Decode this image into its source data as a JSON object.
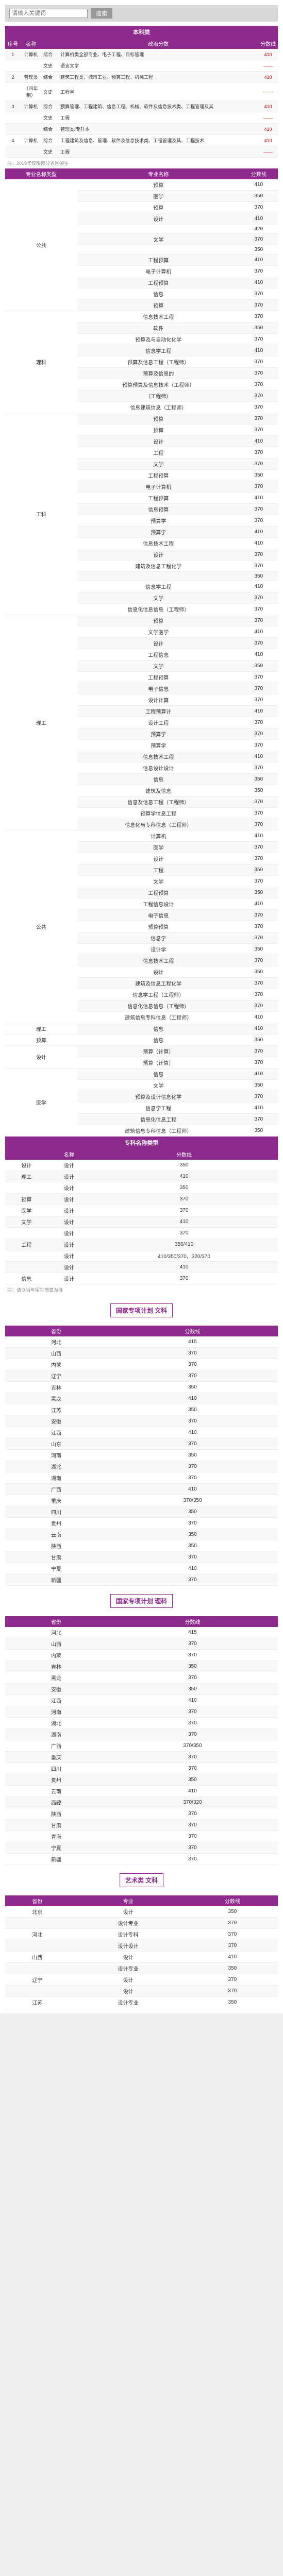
{
  "search": {
    "placeholder": "请输入关键词",
    "btn": "搜索"
  },
  "bk_title": "本科类",
  "bk_cols": [
    "序号",
    "名称",
    "",
    "政治分数",
    "分数线"
  ],
  "bk_rows": [
    [
      "1",
      "计算机",
      "综合",
      "计算机类全部专业、电子工程、目标管理",
      "410"
    ],
    [
      "",
      "",
      "文史",
      "语言文学",
      "——"
    ],
    [
      "2",
      "管理类",
      "综合",
      "建筑工程类、城市工业、预算工程、机械工程",
      "410"
    ],
    [
      "",
      "（四年制）",
      "文史",
      "工程学",
      "——"
    ],
    [
      "3",
      "计算机",
      "综合",
      "预算管理、工程建筑、信息工程、机械、软件及信息技术类、工程管理及其",
      "410"
    ],
    [
      "",
      "",
      "文史",
      "工程",
      "——"
    ],
    [
      "",
      "",
      "综合",
      "管理类/专升本",
      "410"
    ],
    [
      "4",
      "计算机",
      "综合",
      "工程建筑及信息、管理、软件及信息技术类、工程管理及其、工程技术",
      "410"
    ],
    [
      "",
      "",
      "文史",
      "工程",
      "——"
    ]
  ],
  "note1": "注：2019年仅限部分省区招生",
  "sec1_title": "专业及分数",
  "sec1_cols": [
    "专业名称类型",
    "专业名称",
    "分数线"
  ],
  "groups": [
    {
      "cat": "公共",
      "rows": [
        [
          "预算",
          "410"
        ],
        [
          "医学",
          "350"
        ],
        [
          "预算",
          "370"
        ],
        [
          "设计",
          "410"
        ],
        [
          "",
          "420"
        ],
        [
          "文学",
          "370"
        ],
        [
          "",
          "350"
        ],
        [
          "工程预算",
          "410"
        ],
        [
          "电子计算机",
          "370"
        ],
        [
          "工程预算",
          "410"
        ],
        [
          "信息",
          "370"
        ],
        [
          "预算",
          "370"
        ]
      ]
    },
    {
      "cat": "理科",
      "rows": [
        [
          "信息技术工程",
          "370"
        ],
        [
          "软件",
          "350"
        ],
        [
          "预算及与自动化化学",
          "370"
        ],
        [
          "信息学工程",
          "410"
        ],
        [
          "预算及信息工程（工程师）",
          "370"
        ],
        [
          "预算及信息的",
          "370"
        ],
        [
          "预算预算及信息技术（工程师）",
          "370"
        ],
        [
          "（工程师）",
          "370"
        ],
        [
          "信息建筑信息（工程师）",
          "370"
        ]
      ]
    },
    {
      "cat": "工科",
      "rows": [
        [
          "预算",
          "370"
        ],
        [
          "预算",
          "370"
        ],
        [
          "设计",
          "410"
        ],
        [
          "工程",
          "370"
        ],
        [
          "文学",
          "370"
        ],
        [
          "工程预算",
          "350"
        ],
        [
          "电子计算机",
          "370"
        ],
        [
          "工程预算",
          "410"
        ],
        [
          "信息预算",
          "370"
        ],
        [
          "预算学",
          "370"
        ],
        [
          "预算学",
          "410"
        ],
        [
          "信息技术工程",
          "410"
        ],
        [
          "设计",
          "370"
        ],
        [
          "建筑及信息工程化学",
          "370"
        ],
        [
          "",
          "350"
        ],
        [
          "信息学工程",
          "410"
        ],
        [
          "文学",
          "370"
        ],
        [
          "信息化信息信息（工程师）",
          "370"
        ]
      ]
    },
    {
      "cat": "理工",
      "rows": [
        [
          "预算",
          "370"
        ],
        [
          "文学医学",
          "410"
        ],
        [
          "设计",
          "370"
        ],
        [
          "工程信息",
          "410"
        ],
        [
          "文学",
          "350"
        ],
        [
          "工程预算",
          "370"
        ],
        [
          "电子信息",
          "370"
        ],
        [
          "设计计算",
          "370"
        ],
        [
          "工程预算计",
          "410"
        ],
        [
          "设计工程",
          "370"
        ],
        [
          "预算学",
          "370"
        ],
        [
          "预算学",
          "370"
        ],
        [
          "信息技术工程",
          "410"
        ],
        [
          "信息设计设计",
          "370"
        ],
        [
          "信息",
          "350"
        ],
        [
          "建筑及信息",
          "350"
        ],
        [
          "信息及信息工程（工程师）",
          "370"
        ],
        [
          "预算学信息工程",
          "370"
        ],
        [
          "信息化与专科信息（工程师）",
          "370"
        ]
      ]
    },
    {
      "cat": "公共",
      "rows": [
        [
          "计算机",
          "410"
        ],
        [
          "医学",
          "370"
        ],
        [
          "设计",
          "370"
        ],
        [
          "工程",
          "350"
        ],
        [
          "文学",
          "370"
        ],
        [
          "工程预算",
          "350"
        ],
        [
          "工程信息设计",
          "410"
        ],
        [
          "电子信息",
          "370"
        ],
        [
          "预算预算",
          "370"
        ],
        [
          "信息学",
          "370"
        ],
        [
          "设计学",
          "350"
        ],
        [
          "信息技术工程",
          "370"
        ],
        [
          "设计",
          "350"
        ],
        [
          "建筑及信息工程化学",
          "370"
        ],
        [
          "信息学工程（工程师）",
          "370"
        ],
        [
          "信息化信息信息（工程师）",
          "370"
        ],
        [
          "建筑信息专科信息（工程师）",
          "410"
        ]
      ]
    },
    {
      "cat": "理工",
      "rows": [
        [
          "信息",
          "410"
        ]
      ]
    },
    {
      "cat": "预算",
      "rows": [
        [
          "信息",
          "350"
        ]
      ]
    },
    {
      "cat": "设计",
      "rows": [
        [
          "预算（计算）",
          "370"
        ],
        [
          "预算（计算）",
          "370"
        ]
      ]
    },
    {
      "cat": "医学",
      "rows": [
        [
          "信息",
          "410"
        ],
        [
          "文学",
          "350"
        ],
        [
          "预算及设计信息化学",
          "370"
        ],
        [
          "信息学工程",
          "410"
        ],
        [
          "信息化信息工程",
          "370"
        ],
        [
          "建筑信息专科信息（工程师）",
          "350"
        ]
      ]
    }
  ],
  "yz_title": "专科名称类型",
  "yz_cols": [
    "",
    "名称",
    "分数线"
  ],
  "yz_rows": [
    [
      "设计",
      "设计",
      "350"
    ],
    [
      "理工",
      "设计",
      "410"
    ],
    [
      "",
      "设计",
      "350"
    ],
    [
      "预算",
      "设计",
      "370"
    ],
    [
      "医学",
      "设计",
      "370"
    ],
    [
      "文学",
      "设计",
      "410"
    ],
    [
      "",
      "设计",
      "370"
    ],
    [
      "工程",
      "设计",
      "350/410"
    ],
    [
      "",
      "设计",
      "410/350/370，320/370"
    ],
    [
      "",
      "设计",
      "410"
    ],
    [
      "信息",
      "设计",
      "370"
    ]
  ],
  "note2": "注：请以当年招生简章为准",
  "g1_title": "国家专项计划 文科",
  "g1_cols": [
    "省份",
    "分数线"
  ],
  "g1": [
    [
      "河北",
      "415"
    ],
    [
      "山西",
      "370"
    ],
    [
      "内蒙",
      "370"
    ],
    [
      "辽宁",
      "370"
    ],
    [
      "吉林",
      "350"
    ],
    [
      "黑龙",
      "410"
    ],
    [
      "江苏",
      "350"
    ],
    [
      "安徽",
      "370"
    ],
    [
      "江西",
      "410"
    ],
    [
      "山东",
      "370"
    ],
    [
      "河南",
      "350"
    ],
    [
      "湖北",
      "370"
    ],
    [
      "湖南",
      "370"
    ],
    [
      "广西",
      "410"
    ],
    [
      "重庆",
      "370/350"
    ],
    [
      "四川",
      "350"
    ],
    [
      "贵州",
      "370"
    ],
    [
      "云南",
      "350"
    ],
    [
      "陕西",
      "350"
    ],
    [
      "甘肃",
      "370"
    ],
    [
      "宁夏",
      "410"
    ],
    [
      "新疆",
      "370"
    ]
  ],
  "g2_title": "国家专项计划 理科",
  "g2": [
    [
      "河北",
      "415"
    ],
    [
      "山西",
      "370"
    ],
    [
      "内蒙",
      "370"
    ],
    [
      "吉林",
      "350"
    ],
    [
      "黑龙",
      "370"
    ],
    [
      "安徽",
      "350"
    ],
    [
      "江西",
      "410"
    ],
    [
      "河南",
      "370"
    ],
    [
      "湖北",
      "370"
    ],
    [
      "湖南",
      "370"
    ],
    [
      "广西",
      "370/350"
    ],
    [
      "重庆",
      "370"
    ],
    [
      "四川",
      "370"
    ],
    [
      "贵州",
      "350"
    ],
    [
      "云南",
      "410"
    ],
    [
      "西藏",
      "370/320"
    ],
    [
      "陕西",
      "370"
    ],
    [
      "甘肃",
      "370"
    ],
    [
      "青海",
      "370"
    ],
    [
      "宁夏",
      "370"
    ],
    [
      "新疆",
      "370"
    ]
  ],
  "g3_title": "艺术类 文科",
  "g3_cols": [
    "省份",
    "专业",
    "分数线"
  ],
  "g3": [
    [
      "北京",
      "设计",
      "350"
    ],
    [
      "",
      "设计专业",
      "370"
    ],
    [
      "河北",
      "设计专科",
      "370"
    ],
    [
      "",
      "设计设计",
      "370"
    ],
    [
      "山西",
      "设计",
      "410"
    ],
    [
      "",
      "设计专业",
      "350"
    ],
    [
      "辽宁",
      "设计",
      "370"
    ],
    [
      "",
      "设计",
      "370"
    ],
    [
      "江苏",
      "设计专业",
      "350"
    ]
  ]
}
